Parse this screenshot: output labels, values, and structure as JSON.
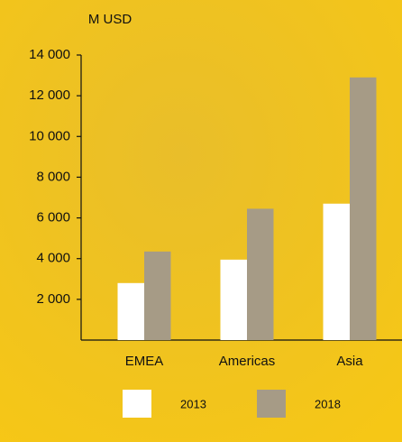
{
  "chart_data": {
    "type": "bar",
    "y_label": "M USD",
    "categories": [
      "EMEA",
      "Americas",
      "Asia"
    ],
    "series": [
      {
        "name": "2013",
        "color": "#ffffff",
        "values": [
          2800,
          3950,
          6700
        ]
      },
      {
        "name": "2018",
        "color": "#a69b86",
        "values": [
          4350,
          6450,
          12900
        ]
      }
    ],
    "ylim": [
      0,
      14000
    ],
    "yticks": [
      {
        "value": 2000,
        "label": "2 000"
      },
      {
        "value": 4000,
        "label": "4 000"
      },
      {
        "value": 6000,
        "label": "6 000"
      },
      {
        "value": 8000,
        "label": "8 000"
      },
      {
        "value": 10000,
        "label": "10 000"
      },
      {
        "value": 12000,
        "label": "12 000"
      },
      {
        "value": 14000,
        "label": "14 000"
      }
    ],
    "grid": false,
    "legend": "bottom"
  }
}
